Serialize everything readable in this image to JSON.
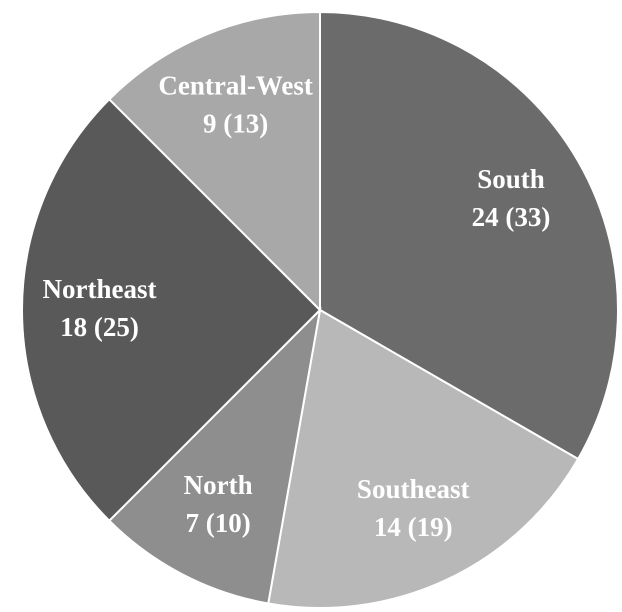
{
  "chart_data": {
    "type": "pie",
    "categories": [
      "South",
      "Southeast",
      "North",
      "Northeast",
      "Central-West"
    ],
    "values": [
      24,
      14,
      7,
      18,
      9
    ],
    "value_labels": [
      "24 (33)",
      "14 (19)",
      "7 (10)",
      "18 (25)",
      "9 (13)"
    ],
    "colors": [
      "#6b6b6b",
      "#b8b8b8",
      "#8e8e8e",
      "#595959",
      "#a8a8a8"
    ]
  }
}
